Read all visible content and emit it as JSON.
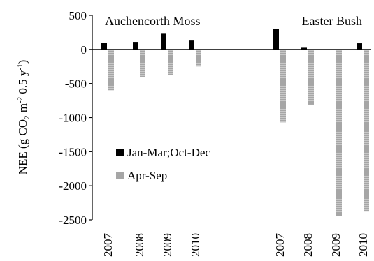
{
  "chart_data": {
    "type": "bar",
    "ylabel": "NEE (g CO₂ m⁻² 0.5 y⁻¹)",
    "ylabel_parts": [
      "NEE (g CO",
      "2",
      " m",
      "-2",
      " 0.5 y",
      "-1",
      ")"
    ],
    "ylim": [
      -2500,
      500
    ],
    "yticks": [
      500,
      0,
      -500,
      -1000,
      -1500,
      -2000,
      -2500
    ],
    "ytick_labels": [
      "500",
      "0",
      "-500",
      "-1000",
      "-1500",
      "-2000",
      "-2500"
    ],
    "grid": false,
    "legend_position": "center-left",
    "groups": [
      {
        "name": "Auchencorth Moss",
        "categories": [
          "2007",
          "2008",
          "2009",
          "2010"
        ]
      },
      {
        "name": "Easter Bush",
        "categories": [
          "2007",
          "2008",
          "2009",
          "2010"
        ]
      }
    ],
    "series": [
      {
        "name": "Jan-Mar;Oct-Dec",
        "color": "#000000",
        "values": [
          [
            100,
            110,
            230,
            130
          ],
          [
            300,
            25,
            -10,
            90
          ]
        ]
      },
      {
        "name": "Apr-Sep",
        "color": "#a6a6a6",
        "values": [
          [
            -600,
            -410,
            -380,
            -250
          ],
          [
            -1070,
            -810,
            -2440,
            -2380
          ]
        ]
      }
    ]
  }
}
